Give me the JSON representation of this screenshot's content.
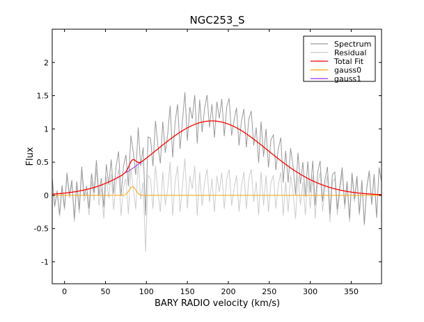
{
  "chart_data": {
    "type": "line",
    "title": "NGC253_S",
    "xlabel": "BARY RADIO velocity (km/s)",
    "ylabel": "Flux",
    "xlim": [
      -15,
      387
    ],
    "ylim": [
      -1.33,
      2.5
    ],
    "xticks": [
      0,
      50,
      100,
      150,
      200,
      250,
      300,
      350
    ],
    "yticks": [
      -1,
      -0.5,
      0,
      0.5,
      1,
      1.5,
      2
    ],
    "ytick_labels": [
      "-1",
      "-0.5",
      "0",
      "0.5",
      "1",
      "1.5",
      "2"
    ],
    "grid": false,
    "legend_position": "top-right",
    "legend": [
      "Spectrum",
      "Residual",
      "Total Fit",
      "gauss0",
      "gauss1"
    ],
    "colors": {
      "Spectrum": "#999999",
      "Residual": "#cccccc",
      "Total Fit": "#ff0000",
      "gauss0": "#ffa500",
      "gauss1": "#9b30ff"
    },
    "components": [
      {
        "name": "gauss0",
        "amplitude": 0.13,
        "center": 83,
        "width": 4
      },
      {
        "name": "gauss1",
        "amplitude": 1.12,
        "center": 180,
        "width": 68
      }
    ],
    "x": [
      -15,
      -12,
      -9,
      -6,
      -3,
      0,
      3,
      6,
      9,
      12,
      15,
      18,
      21,
      24,
      27,
      30,
      33,
      36,
      39,
      42,
      45,
      48,
      51,
      54,
      57,
      60,
      63,
      66,
      69,
      72,
      75,
      78,
      81,
      84,
      87,
      90,
      93,
      96,
      99,
      102,
      105,
      108,
      111,
      114,
      117,
      120,
      123,
      126,
      129,
      132,
      135,
      138,
      141,
      144,
      147,
      150,
      153,
      156,
      159,
      162,
      165,
      168,
      171,
      174,
      177,
      180,
      183,
      186,
      189,
      192,
      195,
      198,
      201,
      204,
      207,
      210,
      213,
      216,
      219,
      222,
      225,
      228,
      231,
      234,
      237,
      240,
      243,
      246,
      249,
      252,
      255,
      258,
      261,
      264,
      267,
      270,
      273,
      276,
      279,
      282,
      285,
      288,
      291,
      294,
      297,
      300,
      303,
      306,
      309,
      312,
      315,
      318,
      321,
      324,
      327,
      330,
      333,
      336,
      339,
      342,
      345,
      348,
      351,
      354,
      357,
      360,
      363,
      366,
      369,
      372,
      375,
      378,
      381,
      384,
      387
    ],
    "spectrum": [
      0.27,
      -0.16,
      0.07,
      -0.29,
      0.15,
      -0.19,
      0.34,
      0,
      0.23,
      -0.35,
      0.21,
      -0.21,
      0.43,
      -0.01,
      0.14,
      -0.2,
      0.33,
      0.04,
      0.53,
      -0.01,
      0.26,
      -0.18,
      0.47,
      0.16,
      0.54,
      0.02,
      0.44,
      0.66,
      -0.01,
      0.44,
      0.61,
      0.14,
      0.9,
      0.64,
      0.31,
      1.02,
      0.44,
      0.72,
      -0.3,
      0.88,
      0.86,
      0.44,
      1.12,
      0.75,
      0.48,
      1.11,
      0.64,
      0.92,
      1.35,
      0.57,
      1.1,
      1.37,
      0.7,
      1.12,
      1.55,
      0.82,
      1.33,
      1.15,
      1.51,
      0.78,
      1.44,
      0.95,
      1.31,
      1.51,
      1.02,
      1.37,
      0.87,
      1.41,
      1.16,
      1.45,
      0.89,
      1.33,
      1.46,
      0.9,
      1.13,
      1.32,
      0.75,
      1.12,
      1.3,
      0.72,
      1.15,
      1.27,
      0.75,
      1.02,
      0.49,
      1.11,
      0.58,
      1.0,
      0.42,
      0.84,
      0.91,
      0.38,
      0.7,
      0.87,
      0.19,
      0.67,
      0.19,
      0.71,
      0.44,
      0.01,
      0.64,
      0.17,
      0.5,
      -0.02,
      0.51,
      0.04,
      0.52,
      -0.15,
      0.34,
      0.52,
      -0.09,
      0.24,
      0.43,
      -0.28,
      0.31,
      0.35,
      -0.21,
      0.13,
      0.42,
      -0.14,
      0.21,
      -0.35,
      0.34,
      -0.06,
      0.29,
      -0.27,
      0.23,
      -0.43,
      0.12,
      0.37,
      -0.13,
      0.32,
      -0.33,
      0.42,
      0.21
    ]
  }
}
